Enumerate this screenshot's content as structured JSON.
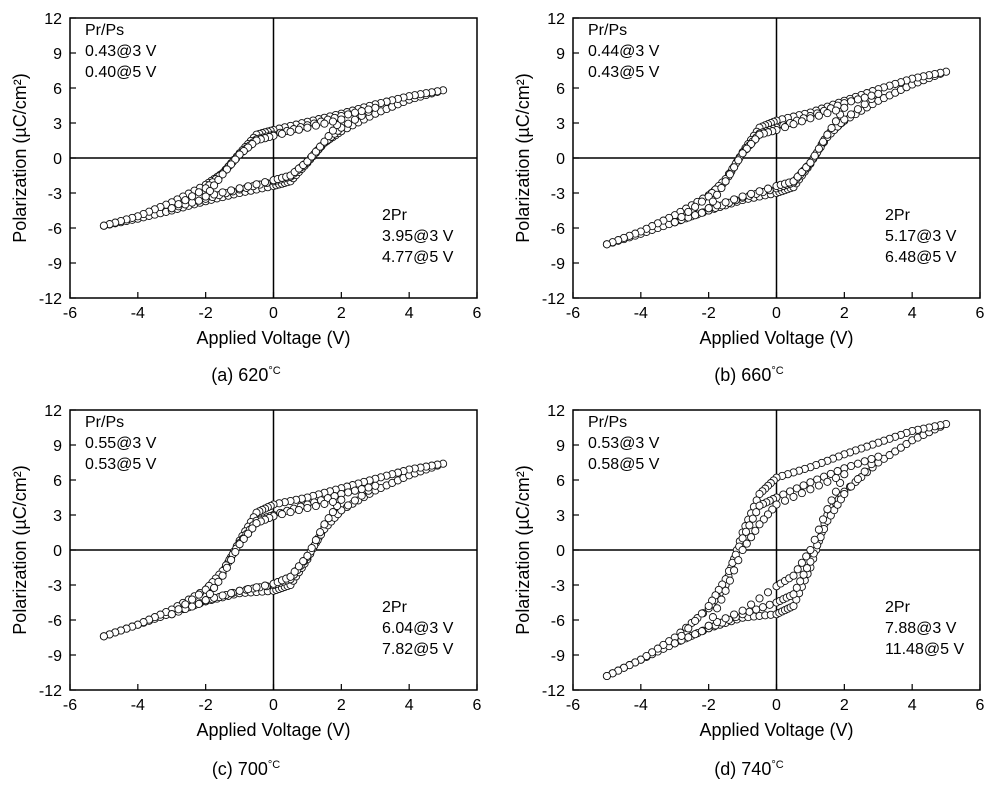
{
  "chart_data": [
    {
      "type": "scatter",
      "panel_label": "(a) 620",
      "caption_unit": "°C",
      "xlabel": "Applied Voltage (V)",
      "ylabel": "Polarization (µC/cm²)",
      "xlim": [
        -6,
        6
      ],
      "ylim": [
        -12,
        12
      ],
      "xticks": [
        -6,
        -4,
        -2,
        0,
        2,
        4,
        6
      ],
      "yticks": [
        -12,
        -9,
        -6,
        -3,
        0,
        3,
        6,
        9,
        12
      ],
      "grid": false,
      "annotations": {
        "top_left": [
          "Pr/Ps",
          "0.43@3 V",
          "0.40@5 V"
        ],
        "bottom_right": [
          "2Pr",
          "3.95@3 V",
          "4.77@5 V"
        ]
      },
      "series": [
        {
          "vmax": 5,
          "values": [
            [
              -5,
              -5.8
            ],
            [
              -4,
              -5.2
            ],
            [
              -3,
              -4.5
            ],
            [
              -2,
              -3.7
            ],
            [
              -1,
              -3.0
            ],
            [
              0,
              -2.4
            ],
            [
              0.5,
              -2.0
            ],
            [
              1.0,
              -0.4
            ],
            [
              1.5,
              1.3
            ],
            [
              2,
              2.3
            ],
            [
              3,
              3.8
            ],
            [
              4,
              5.0
            ],
            [
              5,
              5.8
            ],
            [
              4,
              5.3
            ],
            [
              3,
              4.6
            ],
            [
              2,
              3.8
            ],
            [
              1,
              3.1
            ],
            [
              0,
              2.4
            ],
            [
              -0.5,
              2.0
            ],
            [
              -1.0,
              0.4
            ],
            [
              -1.5,
              -1.3
            ],
            [
              -2,
              -2.3
            ],
            [
              -3,
              -3.8
            ],
            [
              -4,
              -5.0
            ],
            [
              -5,
              -5.8
            ]
          ]
        },
        {
          "vmax": 3,
          "values": [
            [
              -3,
              -4.3
            ],
            [
              -2,
              -3.5
            ],
            [
              -1,
              -2.7
            ],
            [
              0,
              -2.0
            ],
            [
              0.5,
              -1.6
            ],
            [
              1.0,
              -0.3
            ],
            [
              1.5,
              1.3
            ],
            [
              2,
              2.6
            ],
            [
              3,
              4.3
            ],
            [
              2,
              3.6
            ],
            [
              1,
              2.8
            ],
            [
              0,
              2.0
            ],
            [
              -0.5,
              1.6
            ],
            [
              -1.0,
              0.3
            ],
            [
              -1.5,
              -1.3
            ],
            [
              -2,
              -2.6
            ],
            [
              -3,
              -4.3
            ]
          ]
        },
        {
          "vmax": 2,
          "values": [
            [
              -2,
              -3.3
            ],
            [
              -1,
              -2.6
            ],
            [
              0,
              -1.9
            ],
            [
              0.5,
              -1.5
            ],
            [
              1.0,
              -0.3
            ],
            [
              1.5,
              1.4
            ],
            [
              2,
              3.3
            ],
            [
              1,
              2.6
            ],
            [
              0,
              1.9
            ],
            [
              -0.5,
              1.5
            ],
            [
              -1.0,
              0.3
            ],
            [
              -1.5,
              -1.4
            ],
            [
              -2,
              -3.3
            ]
          ]
        }
      ]
    },
    {
      "type": "scatter",
      "panel_label": "(b) 660",
      "caption_unit": "°C",
      "xlabel": "Applied Voltage (V)",
      "ylabel": "Polarization (µC/cm²)",
      "xlim": [
        -6,
        6
      ],
      "ylim": [
        -12,
        12
      ],
      "xticks": [
        -6,
        -4,
        -2,
        0,
        2,
        4,
        6
      ],
      "yticks": [
        -12,
        -9,
        -6,
        -3,
        0,
        3,
        6,
        9,
        12
      ],
      "grid": false,
      "annotations": {
        "top_left": [
          "Pr/Ps",
          "0.44@3 V",
          "0.43@5 V"
        ],
        "bottom_right": [
          "2Pr",
          "5.17@3 V",
          "6.48@5 V"
        ]
      },
      "series": [
        {
          "vmax": 5,
          "values": [
            [
              -5,
              -7.4
            ],
            [
              -4,
              -6.5
            ],
            [
              -3,
              -5.5
            ],
            [
              -2,
              -4.5
            ],
            [
              -1,
              -3.6
            ],
            [
              0,
              -3.0
            ],
            [
              0.5,
              -2.5
            ],
            [
              1.0,
              -0.5
            ],
            [
              1.5,
              2.0
            ],
            [
              2,
              3.2
            ],
            [
              3,
              4.9
            ],
            [
              4,
              6.3
            ],
            [
              5,
              7.4
            ],
            [
              4,
              6.8
            ],
            [
              3,
              5.9
            ],
            [
              2,
              4.9
            ],
            [
              1,
              3.9
            ],
            [
              0,
              3.2
            ],
            [
              -0.5,
              2.6
            ],
            [
              -1.0,
              0.5
            ],
            [
              -1.5,
              -2.0
            ],
            [
              -2,
              -3.2
            ],
            [
              -3,
              -4.9
            ],
            [
              -4,
              -6.3
            ],
            [
              -5,
              -7.4
            ]
          ]
        },
        {
          "vmax": 3,
          "values": [
            [
              -3,
              -5.5
            ],
            [
              -2,
              -4.5
            ],
            [
              -1,
              -3.4
            ],
            [
              0,
              -2.6
            ],
            [
              0.5,
              -2.1
            ],
            [
              1.0,
              -0.4
            ],
            [
              1.5,
              1.8
            ],
            [
              2,
              3.3
            ],
            [
              3,
              5.5
            ],
            [
              2,
              4.7
            ],
            [
              1,
              3.6
            ],
            [
              0,
              2.6
            ],
            [
              -0.5,
              2.1
            ],
            [
              -1.0,
              0.4
            ],
            [
              -1.5,
              -1.8
            ],
            [
              -2,
              -3.3
            ],
            [
              -3,
              -5.5
            ]
          ]
        },
        {
          "vmax": 2,
          "values": [
            [
              -2,
              -4.3
            ],
            [
              -1,
              -3.3
            ],
            [
              0,
              -2.4
            ],
            [
              0.5,
              -2.0
            ],
            [
              1.0,
              -0.4
            ],
            [
              1.5,
              2.0
            ],
            [
              2,
              4.3
            ],
            [
              1,
              3.4
            ],
            [
              0,
              2.4
            ],
            [
              -0.5,
              2.0
            ],
            [
              -1.0,
              0.4
            ],
            [
              -1.5,
              -2.0
            ],
            [
              -2,
              -4.3
            ]
          ]
        }
      ]
    },
    {
      "type": "scatter",
      "panel_label": "(c) 700",
      "caption_unit": "°C",
      "xlabel": "Applied Voltage (V)",
      "ylabel": "Polarization (µC/cm²)",
      "xlim": [
        -6,
        6
      ],
      "ylim": [
        -12,
        12
      ],
      "xticks": [
        -6,
        -4,
        -2,
        0,
        2,
        4,
        6
      ],
      "yticks": [
        -12,
        -9,
        -6,
        -3,
        0,
        3,
        6,
        9,
        12
      ],
      "grid": false,
      "annotations": {
        "top_left": [
          "Pr/Ps",
          "0.55@3 V",
          "0.53@5 V"
        ],
        "bottom_right": [
          "2Pr",
          "6.04@3 V",
          "7.82@5 V"
        ]
      },
      "series": [
        {
          "vmax": 5,
          "values": [
            [
              -5,
              -7.4
            ],
            [
              -4,
              -6.4
            ],
            [
              -3,
              -5.4
            ],
            [
              -2,
              -4.4
            ],
            [
              -1,
              -3.7
            ],
            [
              0,
              -3.5
            ],
            [
              0.5,
              -3.0
            ],
            [
              1.0,
              -0.8
            ],
            [
              1.5,
              2.0
            ],
            [
              2,
              3.4
            ],
            [
              3,
              5.1
            ],
            [
              4,
              6.4
            ],
            [
              5,
              7.4
            ],
            [
              4,
              6.9
            ],
            [
              3,
              6.1
            ],
            [
              2,
              5.3
            ],
            [
              1,
              4.5
            ],
            [
              0,
              3.9
            ],
            [
              -0.5,
              3.2
            ],
            [
              -1.0,
              0.8
            ],
            [
              -1.5,
              -2.0
            ],
            [
              -2,
              -3.4
            ],
            [
              -3,
              -5.1
            ],
            [
              -4,
              -6.4
            ],
            [
              -5,
              -7.4
            ]
          ]
        },
        {
          "vmax": 3,
          "values": [
            [
              -3,
              -5.5
            ],
            [
              -2,
              -4.4
            ],
            [
              -1,
              -3.5
            ],
            [
              0,
              -3.0
            ],
            [
              0.5,
              -2.5
            ],
            [
              1.0,
              -0.6
            ],
            [
              1.5,
              1.8
            ],
            [
              2,
              3.4
            ],
            [
              3,
              5.5
            ],
            [
              2,
              4.8
            ],
            [
              1,
              3.9
            ],
            [
              0,
              3.0
            ],
            [
              -0.5,
              2.5
            ],
            [
              -1.0,
              0.6
            ],
            [
              -1.5,
              -1.8
            ],
            [
              -2,
              -3.4
            ],
            [
              -3,
              -5.5
            ]
          ]
        },
        {
          "vmax": 2,
          "values": [
            [
              -2,
              -4.3
            ],
            [
              -1,
              -3.5
            ],
            [
              0,
              -2.9
            ],
            [
              0.5,
              -2.3
            ],
            [
              1.0,
              -0.5
            ],
            [
              1.5,
              2.2
            ],
            [
              2,
              4.3
            ],
            [
              1,
              3.6
            ],
            [
              0,
              2.9
            ],
            [
              -0.5,
              2.3
            ],
            [
              -1.0,
              0.5
            ],
            [
              -1.5,
              -2.2
            ],
            [
              -2,
              -4.3
            ]
          ]
        }
      ]
    },
    {
      "type": "scatter",
      "panel_label": "(d) 740",
      "caption_unit": "°C",
      "xlabel": "Applied Voltage (V)",
      "ylabel": "Polarization (µC/cm²)",
      "xlim": [
        -6,
        6
      ],
      "ylim": [
        -12,
        12
      ],
      "xticks": [
        -6,
        -4,
        -2,
        0,
        2,
        4,
        6
      ],
      "yticks": [
        -12,
        -9,
        -6,
        -3,
        0,
        3,
        6,
        9,
        12
      ],
      "grid": false,
      "annotations": {
        "top_left": [
          "Pr/Ps",
          "0.53@3 V",
          "0.58@5 V"
        ],
        "bottom_right": [
          "2Pr",
          "7.88@3 V",
          "11.48@5 V"
        ]
      },
      "series": [
        {
          "vmax": 5,
          "values": [
            [
              -5,
              -10.8
            ],
            [
              -4,
              -9.4
            ],
            [
              -3,
              -8.0
            ],
            [
              -2,
              -6.7
            ],
            [
              -1,
              -5.8
            ],
            [
              0,
              -5.5
            ],
            [
              0.5,
              -4.8
            ],
            [
              1.0,
              -1.5
            ],
            [
              1.5,
              3.0
            ],
            [
              2,
              5.0
            ],
            [
              3,
              7.5
            ],
            [
              4,
              9.4
            ],
            [
              5,
              10.8
            ],
            [
              4,
              10.2
            ],
            [
              3,
              9.2
            ],
            [
              2,
              8.2
            ],
            [
              1,
              7.1
            ],
            [
              0,
              6.2
            ],
            [
              -0.5,
              4.8
            ],
            [
              -1.0,
              1.5
            ],
            [
              -1.5,
              -3.0
            ],
            [
              -2,
              -5.0
            ],
            [
              -3,
              -7.5
            ],
            [
              -4,
              -9.4
            ],
            [
              -5,
              -10.8
            ]
          ]
        },
        {
          "vmax": 3,
          "values": [
            [
              -3,
              -8.0
            ],
            [
              -2,
              -6.7
            ],
            [
              -1,
              -5.5
            ],
            [
              0,
              -4.5
            ],
            [
              0.5,
              -3.8
            ],
            [
              1.0,
              -1.0
            ],
            [
              1.5,
              2.5
            ],
            [
              2,
              4.8
            ],
            [
              3,
              8.0
            ],
            [
              2,
              7.0
            ],
            [
              1,
              5.8
            ],
            [
              0,
              4.5
            ],
            [
              -0.5,
              3.8
            ],
            [
              -1.0,
              1.0
            ],
            [
              -1.5,
              -2.5
            ],
            [
              -2,
              -4.8
            ],
            [
              -3,
              -8.0
            ]
          ]
        },
        {
          "vmax": 2,
          "values": [
            [
              -2,
              -6.5
            ],
            [
              -1,
              -5.2
            ],
            [
              0,
              -3.1
            ],
            [
              0.5,
              -2.2
            ],
            [
              1.0,
              0.0
            ],
            [
              1.5,
              3.5
            ],
            [
              2,
              6.5
            ],
            [
              1,
              5.2
            ],
            [
              0,
              3.9
            ],
            [
              -0.5,
              2.2
            ],
            [
              -1.0,
              0.0
            ],
            [
              -1.5,
              -3.5
            ],
            [
              -2,
              -6.5
            ]
          ]
        }
      ]
    }
  ]
}
